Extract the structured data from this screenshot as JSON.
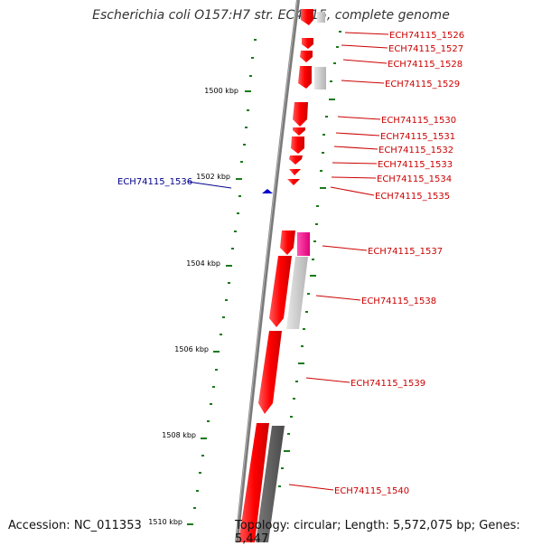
{
  "title": "Escherichia coli O157:H7 str. EC4115, complete genome",
  "footer": {
    "accession": "Accession: NC_011353",
    "topology": "Topology: circular; Length: 5,572,075 bp; Genes: 5,447"
  },
  "ticks": [
    {
      "label": "1500 kbp"
    },
    {
      "label": "1502 kbp"
    },
    {
      "label": "1504 kbp"
    },
    {
      "label": "1506 kbp"
    },
    {
      "label": "1508 kbp"
    },
    {
      "label": "1510 kbp"
    }
  ],
  "genes": [
    {
      "label": "ECH74115_1526"
    },
    {
      "label": "ECH74115_1527"
    },
    {
      "label": "ECH74115_1528"
    },
    {
      "label": "ECH74115_1529"
    },
    {
      "label": "ECH74115_1530"
    },
    {
      "label": "ECH74115_1531"
    },
    {
      "label": "ECH74115_1532"
    },
    {
      "label": "ECH74115_1533"
    },
    {
      "label": "ECH74115_1534"
    },
    {
      "label": "ECH74115_1535"
    },
    {
      "label": "ECH74115_1536",
      "strand": "minus"
    },
    {
      "label": "ECH74115_1537"
    },
    {
      "label": "ECH74115_1538"
    },
    {
      "label": "ECH74115_1539"
    },
    {
      "label": "ECH74115_1540"
    }
  ],
  "colors": {
    "backbone": "#808080",
    "cds": "#ff0000",
    "cds_dark": "#cc0000",
    "homolog_light": "#c8c8c8",
    "homolog_dark": "#5a5a5a",
    "homolog_pink": "#ff1493",
    "ticks": "#1a7a1a",
    "label_plus": "#cc0000",
    "label_minus": "#00008b"
  }
}
